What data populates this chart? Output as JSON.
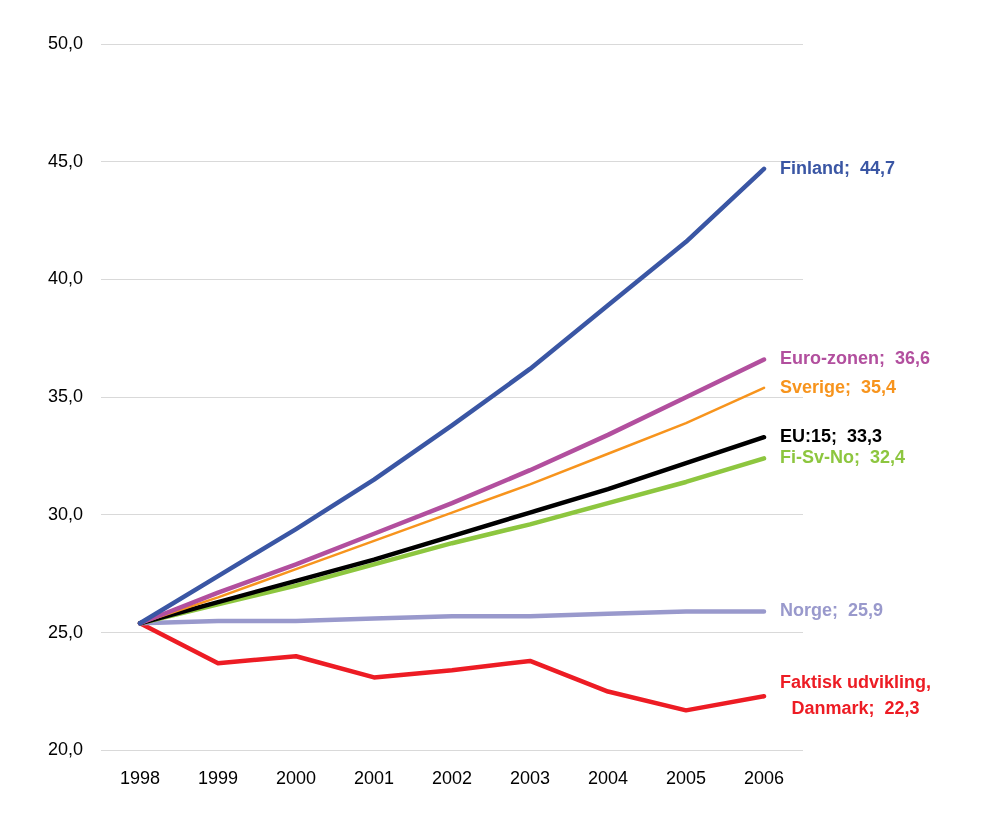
{
  "chart_data": {
    "type": "line",
    "categories": [
      "1998",
      "1999",
      "2000",
      "2001",
      "2002",
      "2003",
      "2004",
      "2005",
      "2006"
    ],
    "ylim": [
      20,
      50
    ],
    "yticks": [
      {
        "value": 20,
        "label": "20,0"
      },
      {
        "value": 25,
        "label": "25,0"
      },
      {
        "value": 30,
        "label": "30,0"
      },
      {
        "value": 35,
        "label": "35,0"
      },
      {
        "value": 40,
        "label": "40,0"
      },
      {
        "value": 45,
        "label": "45,0"
      },
      {
        "value": 50,
        "label": "50,0"
      }
    ],
    "grid": "y",
    "legend": false,
    "marker": "none",
    "line_style": "solid",
    "series": [
      {
        "name": "Finland;",
        "color": "#3a56a4",
        "values": [
          25.4,
          27.4,
          29.4,
          31.5,
          33.8,
          36.2,
          38.9,
          41.6,
          44.7
        ],
        "value_labels": [
          null,
          null,
          null,
          null,
          null,
          null,
          null,
          null,
          "44,7"
        ]
      },
      {
        "name": "Euro-zonen;",
        "color": "#b24f9e",
        "values": [
          25.4,
          26.7,
          27.9,
          29.2,
          30.5,
          31.9,
          33.4,
          35.0,
          36.6
        ],
        "value_labels": [
          null,
          null,
          null,
          null,
          null,
          null,
          null,
          null,
          "36,6"
        ]
      },
      {
        "name": "Sverige;",
        "color": "#f7941d",
        "values": [
          25.4,
          26.5,
          27.7,
          28.9,
          30.1,
          31.3,
          32.6,
          33.9,
          35.4
        ],
        "value_labels": [
          null,
          null,
          null,
          null,
          null,
          null,
          null,
          null,
          "35,4"
        ]
      },
      {
        "name": "EU:15;",
        "color": "#000000",
        "values": [
          25.4,
          26.3,
          27.2,
          28.1,
          29.1,
          30.1,
          31.1,
          32.2,
          33.3
        ],
        "value_labels": [
          null,
          null,
          null,
          null,
          null,
          null,
          null,
          null,
          "33,3"
        ]
      },
      {
        "name": "Fi-Sv-No;",
        "color": "#8dc63f",
        "values": [
          25.4,
          26.2,
          27.0,
          27.9,
          28.8,
          29.6,
          30.5,
          31.4,
          32.4
        ],
        "value_labels": [
          null,
          null,
          null,
          null,
          null,
          null,
          null,
          null,
          "32,4"
        ]
      },
      {
        "name": "Norge;",
        "color": "#9999cc",
        "values": [
          25.4,
          25.5,
          25.5,
          25.6,
          25.7,
          25.7,
          25.8,
          25.9,
          25.9
        ],
        "value_labels": [
          null,
          null,
          null,
          null,
          null,
          null,
          null,
          null,
          "25,9"
        ]
      },
      {
        "name": "Faktisk udvikling, Danmark;",
        "color": "#ed1c24",
        "values": [
          25.4,
          23.7,
          24.0,
          23.1,
          23.4,
          23.8,
          22.5,
          21.7,
          22.3
        ],
        "value_labels": [
          null,
          null,
          null,
          null,
          null,
          null,
          null,
          null,
          "22,3"
        ]
      }
    ]
  }
}
